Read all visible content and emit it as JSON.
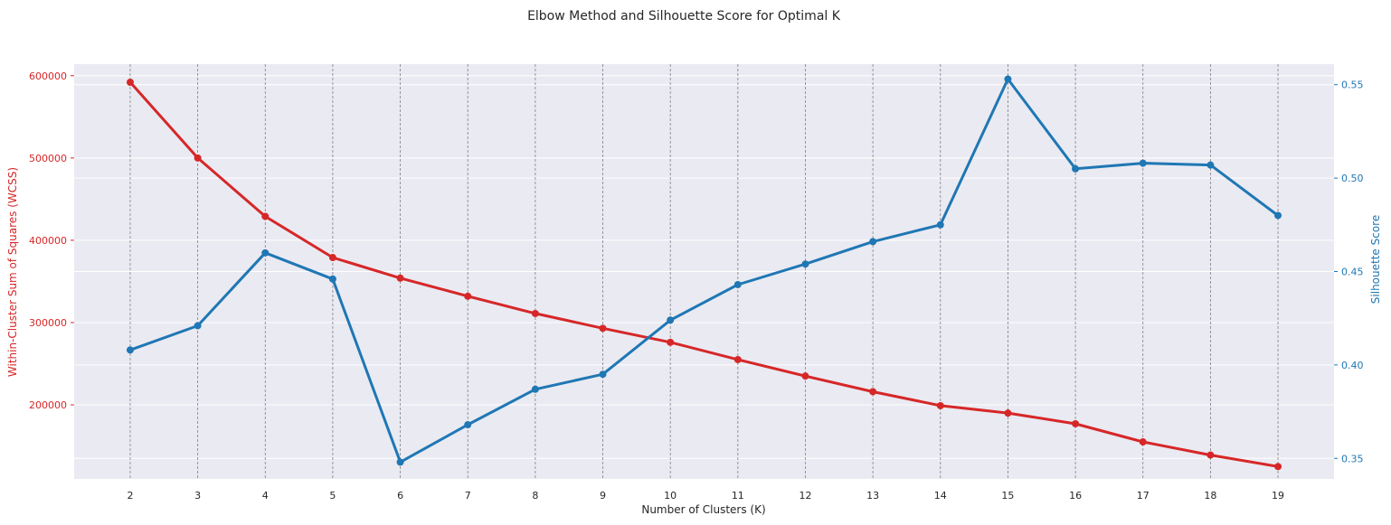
{
  "chart_data": {
    "type": "line",
    "title": "Elbow Method and Silhouette Score for Optimal K",
    "xlabel": "Number of Clusters (K)",
    "ylabel_left": "Within-Cluster Sum of Squares (WCSS)",
    "ylabel_right": "Silhouette Score",
    "x": [
      2,
      3,
      4,
      5,
      6,
      7,
      8,
      9,
      10,
      11,
      12,
      13,
      14,
      15,
      16,
      17,
      18,
      19
    ],
    "x_tick_labels": [
      "2",
      "3",
      "4",
      "5",
      "6",
      "7",
      "8",
      "9",
      "10",
      "11",
      "12",
      "13",
      "14",
      "15",
      "16",
      "17",
      "18",
      "19"
    ],
    "xlim": [
      1.17,
      19.83
    ],
    "y_left_ticks": [
      200000,
      300000,
      400000,
      500000,
      600000
    ],
    "y_left_tick_labels": [
      "200000",
      "300000",
      "400000",
      "500000",
      "600000"
    ],
    "ylim_left": [
      110000,
      614000
    ],
    "y_right_ticks": [
      0.35,
      0.4,
      0.45,
      0.5,
      0.55
    ],
    "y_right_tick_labels": [
      "0.35",
      "0.40",
      "0.45",
      "0.50",
      "0.55"
    ],
    "ylim_right": [
      0.339,
      0.561
    ],
    "grid": true,
    "vertical_dashed_lines_at_x": true,
    "colors": {
      "wcss": "#d62728",
      "silhouette": "#1f77b4",
      "plot_bg": "#eaeaf2",
      "grid": "#ffffff",
      "vline": "#808080",
      "text": "#262626"
    },
    "series": [
      {
        "axis": "left",
        "values": [
          592000,
          500000,
          429000,
          379000,
          354000,
          332000,
          311000,
          293000,
          276000,
          255000,
          235000,
          216000,
          199000,
          190000,
          177000,
          155000,
          139000,
          125000
        ]
      },
      {
        "axis": "right",
        "values": [
          0.408,
          0.421,
          0.46,
          0.446,
          0.348,
          0.368,
          0.387,
          0.395,
          0.424,
          0.443,
          0.454,
          0.466,
          0.475,
          0.553,
          0.505,
          0.508,
          0.507,
          0.48
        ]
      }
    ]
  }
}
